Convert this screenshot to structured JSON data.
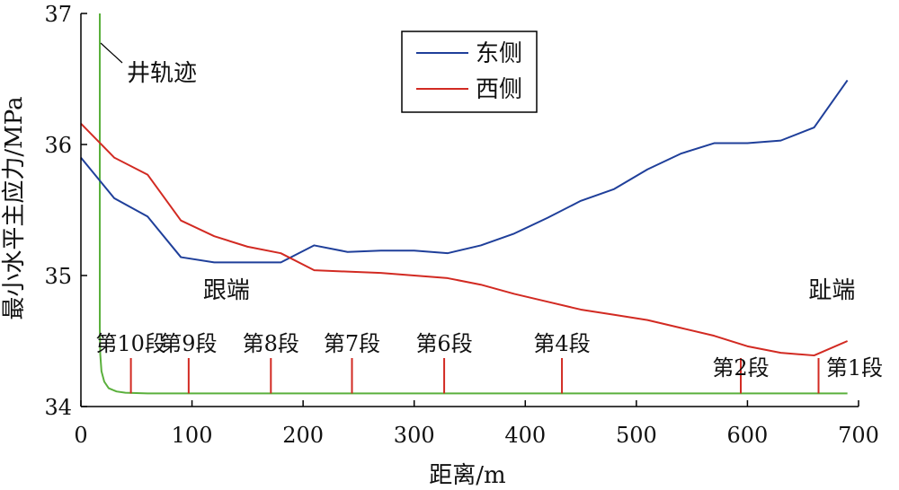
{
  "chart_data": {
    "type": "line",
    "xlabel": "距离/m",
    "ylabel": "最小水平主应力/MPa",
    "xlim": [
      0,
      700
    ],
    "ylim": [
      34,
      37
    ],
    "xticks": [
      "0",
      "100",
      "200",
      "300",
      "400",
      "500",
      "600",
      "700"
    ],
    "yticks": [
      "34",
      "35",
      "36",
      "37"
    ],
    "grid": false,
    "legend_position": "top-center",
    "series": [
      {
        "name": "东侧",
        "color": "#1f3f9a",
        "x": [
          0,
          30,
          60,
          90,
          120,
          150,
          180,
          210,
          240,
          270,
          300,
          330,
          360,
          390,
          420,
          450,
          480,
          510,
          540,
          570,
          600,
          630,
          660,
          690
        ],
        "y": [
          35.9,
          35.59,
          35.45,
          35.14,
          35.1,
          35.1,
          35.1,
          35.23,
          35.18,
          35.19,
          35.19,
          35.17,
          35.23,
          35.32,
          35.44,
          35.57,
          35.66,
          35.81,
          35.93,
          36.01,
          36.01,
          36.03,
          36.13,
          36.49
        ]
      },
      {
        "name": "西侧",
        "color": "#d22a22",
        "x": [
          0,
          30,
          60,
          90,
          120,
          150,
          180,
          210,
          240,
          270,
          300,
          330,
          360,
          390,
          420,
          450,
          480,
          510,
          540,
          570,
          600,
          630,
          660,
          690
        ],
        "y": [
          36.16,
          35.9,
          35.77,
          35.42,
          35.3,
          35.22,
          35.17,
          35.04,
          35.03,
          35.02,
          35.0,
          34.98,
          34.93,
          34.86,
          34.8,
          34.74,
          34.7,
          34.66,
          34.6,
          34.54,
          34.46,
          34.41,
          34.39,
          34.5
        ]
      }
    ],
    "well_trajectory": {
      "label": "井轨迹",
      "color": "#5ab03c",
      "x": [
        17,
        17,
        17.4,
        18.5,
        21,
        25,
        32,
        40,
        60,
        690
      ],
      "y": [
        37,
        34.6,
        34.4,
        34.27,
        34.19,
        34.14,
        34.115,
        34.105,
        34.1,
        34.1
      ]
    },
    "stages": {
      "color": "#d22a22",
      "y_bottom": 34.1,
      "y_top": 34.37,
      "items": [
        {
          "label": "第10段",
          "x": 45
        },
        {
          "label": "第9段",
          "x": 97
        },
        {
          "label": "第8段",
          "x": 171
        },
        {
          "label": "第7段",
          "x": 244
        },
        {
          "label": "第6段",
          "x": 327
        },
        {
          "label": "第4段",
          "x": 433
        },
        {
          "label": "第2段",
          "x": 594
        },
        {
          "label": "第1段",
          "x": 664
        }
      ]
    },
    "annotations": [
      {
        "text": "跟端",
        "x": 110,
        "y": 34.83
      },
      {
        "text": "趾端",
        "x": 655,
        "y": 34.83
      }
    ]
  }
}
